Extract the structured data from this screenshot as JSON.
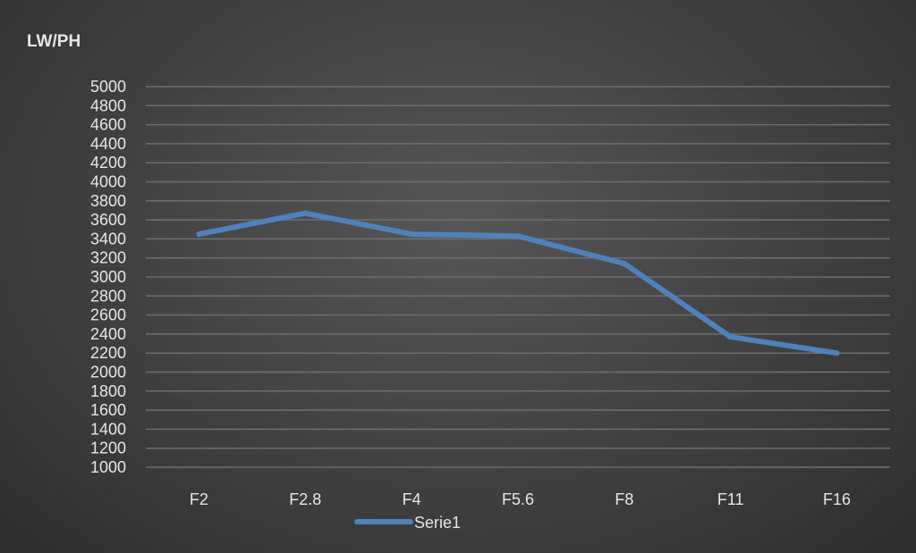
{
  "chart_data": {
    "type": "line",
    "ylabel": "LW/PH",
    "xlabel": "",
    "categories": [
      "F2",
      "F2.8",
      "F4",
      "F5.6",
      "F8",
      "F11",
      "F16"
    ],
    "series": [
      {
        "name": "Serie1",
        "values": [
          3450,
          3670,
          3450,
          3430,
          3140,
          2370,
          2200
        ],
        "color": "#4f81bd"
      }
    ],
    "ylim": [
      1000,
      5000
    ],
    "y_ticks": [
      1000,
      1200,
      1400,
      1600,
      1800,
      2000,
      2200,
      2400,
      2600,
      2800,
      3000,
      3200,
      3400,
      3600,
      3800,
      4000,
      4200,
      4400,
      4600,
      4800,
      5000
    ],
    "grid": true,
    "legend_position": "bottom"
  }
}
